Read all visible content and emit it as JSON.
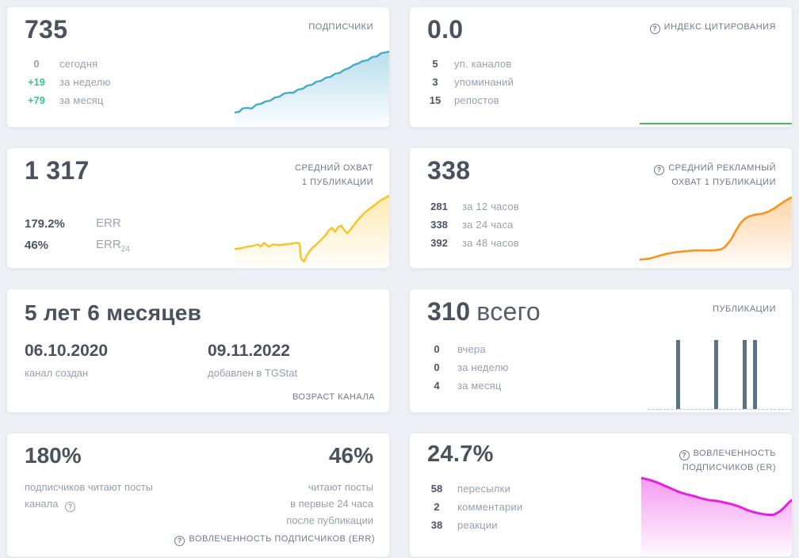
{
  "icons": {
    "help_glyph": "?"
  },
  "colors": {
    "page_bg": "#eef0f5",
    "card_bg": "#ffffff",
    "big_number": "#49525e",
    "header_label": "#6b7a8f",
    "stat_label": "#96a0af",
    "positive_green": "#3fc28c",
    "subscribers_line": "#45a9cd",
    "citation_line": "#3fbf55",
    "reach_line": "#f7c325",
    "ad_reach_line": "#f8941e",
    "publications_bar": "#5b7189",
    "er_line": "#e91fe0"
  },
  "cards": {
    "subscribers": {
      "value": "735",
      "title": "ПОДПИСЧИКИ",
      "stats": [
        {
          "value": "0",
          "label": "сегодня"
        },
        {
          "value": "+19",
          "label": "за неделю"
        },
        {
          "value": "+79",
          "label": "за месяц"
        }
      ],
      "chart": {
        "type": "area",
        "color": "#45a9cd",
        "fill_opacity": 0.38,
        "stroke_width": 2.4,
        "points": [
          [
            0,
            82
          ],
          [
            3,
            81
          ],
          [
            5,
            77
          ],
          [
            8,
            76
          ],
          [
            11,
            77
          ],
          [
            14,
            72
          ],
          [
            17,
            71
          ],
          [
            20,
            68
          ],
          [
            23,
            67
          ],
          [
            26,
            63
          ],
          [
            29,
            62
          ],
          [
            32,
            58
          ],
          [
            35,
            57
          ],
          [
            38,
            57
          ],
          [
            41,
            53
          ],
          [
            44,
            52
          ],
          [
            47,
            48
          ],
          [
            50,
            47
          ],
          [
            53,
            43
          ],
          [
            56,
            42
          ],
          [
            59,
            38
          ],
          [
            62,
            37
          ],
          [
            65,
            33
          ],
          [
            68,
            32
          ],
          [
            71,
            28
          ],
          [
            74,
            26
          ],
          [
            77,
            22
          ],
          [
            80,
            20
          ],
          [
            83,
            17
          ],
          [
            86,
            16
          ],
          [
            89,
            12
          ],
          [
            92,
            11
          ],
          [
            95,
            7
          ],
          [
            98,
            6
          ],
          [
            100,
            5
          ]
        ]
      }
    },
    "citation_index": {
      "value": "0.0",
      "title": "ИНДЕКС ЦИТИРОВАНИЯ",
      "stats": [
        {
          "value": "5",
          "label": "уп. каналов"
        },
        {
          "value": "3",
          "label": "упоминаний"
        },
        {
          "value": "15",
          "label": "репостов"
        }
      ],
      "chart": {
        "type": "flat-line",
        "color": "#3fbf55"
      }
    },
    "avg_post_reach": {
      "value": "1 317",
      "title_line1": "СРЕДНИЙ ОХВАТ",
      "title_line2": "1 ПУБЛИКАЦИИ",
      "stats": [
        {
          "value": "179.2%",
          "label": "ERR",
          "sub": ""
        },
        {
          "value": "46%",
          "label": "ERR",
          "sub": "24"
        }
      ],
      "chart": {
        "type": "area",
        "color": "#f7c325",
        "fill_opacity": 0.35,
        "stroke_width": 2.4,
        "points": [
          [
            0,
            76
          ],
          [
            4,
            75
          ],
          [
            8,
            73
          ],
          [
            12,
            72
          ],
          [
            15,
            70
          ],
          [
            17,
            73
          ],
          [
            19,
            68
          ],
          [
            22,
            73
          ],
          [
            25,
            70
          ],
          [
            29,
            71
          ],
          [
            33,
            70
          ],
          [
            37,
            69
          ],
          [
            40,
            68
          ],
          [
            42,
            69
          ],
          [
            43,
            88
          ],
          [
            45,
            92
          ],
          [
            47,
            83
          ],
          [
            50,
            75
          ],
          [
            53,
            70
          ],
          [
            56,
            64
          ],
          [
            59,
            58
          ],
          [
            61,
            52
          ],
          [
            63,
            49
          ],
          [
            65,
            54
          ],
          [
            67,
            48
          ],
          [
            69,
            46
          ],
          [
            71,
            52
          ],
          [
            73,
            56
          ],
          [
            75,
            51
          ],
          [
            78,
            43
          ],
          [
            81,
            36
          ],
          [
            84,
            30
          ],
          [
            87,
            25
          ],
          [
            90,
            21
          ],
          [
            93,
            16
          ],
          [
            96,
            12
          ],
          [
            100,
            8
          ]
        ]
      }
    },
    "avg_ad_reach": {
      "value": "338",
      "title_line1": "СРЕДНИЙ РЕКЛАМНЫЙ",
      "title_line2": "ОХВАТ 1 ПУБЛИКАЦИИ",
      "stats": [
        {
          "value": "281",
          "label": "за 12 часов"
        },
        {
          "value": "338",
          "label": "за 24 часа"
        },
        {
          "value": "392",
          "label": "за 48 часов"
        }
      ],
      "chart": {
        "type": "area",
        "color": "#f8941e",
        "fill_opacity": 0.4,
        "stroke_width": 2.6,
        "points": [
          [
            0,
            90
          ],
          [
            6,
            89
          ],
          [
            12,
            86
          ],
          [
            18,
            83
          ],
          [
            24,
            81
          ],
          [
            30,
            80
          ],
          [
            36,
            79
          ],
          [
            42,
            79
          ],
          [
            48,
            79
          ],
          [
            53,
            78
          ],
          [
            56,
            75
          ],
          [
            60,
            66
          ],
          [
            63,
            56
          ],
          [
            66,
            47
          ],
          [
            69,
            41
          ],
          [
            72,
            38
          ],
          [
            76,
            36
          ],
          [
            80,
            35
          ],
          [
            84,
            33
          ],
          [
            88,
            29
          ],
          [
            92,
            24
          ],
          [
            96,
            19
          ],
          [
            100,
            15
          ]
        ]
      }
    },
    "channel_age": {
      "value": "5 лет 6 месяцев",
      "created_date": "06.10.2020",
      "created_label": "канал создан",
      "added_date": "09.11.2022",
      "added_label": "добавлен в TGStat",
      "title": "ВОЗРАСТ КАНАЛА"
    },
    "publications": {
      "value": "310",
      "suffix": "всего",
      "title": "ПУБЛИКАЦИИ",
      "stats": [
        {
          "value": "0",
          "label": "вчера"
        },
        {
          "value": "0",
          "label": "за неделю"
        },
        {
          "value": "4",
          "label": "за месяц"
        }
      ],
      "chart": {
        "type": "bars",
        "color": "#5b7189",
        "baseline_color": "#b8c1ce",
        "bars": [
          {
            "x": 19.8,
            "h": 100
          },
          {
            "x": 46.2,
            "h": 100
          },
          {
            "x": 65.9,
            "h": 100
          },
          {
            "x": 73.1,
            "h": 100
          }
        ]
      }
    },
    "err_engagement": {
      "left_value": "180%",
      "left_label": "подписчиков читают посты канала",
      "right_value": "46%",
      "right_label_line1": "читают посты",
      "right_label_line2": "в первые 24 часа",
      "right_label_line3": "после публикации",
      "title": "ВОВЛЕЧЕННОСТЬ ПОДПИСЧИКОВ (ERR)"
    },
    "er_engagement": {
      "value": "24.7%",
      "title_line1": "ВОВЛЕЧЕННОСТЬ",
      "title_line2": "ПОДПИСЧИКОВ (ER)",
      "stats": [
        {
          "value": "58",
          "label": "пересылки"
        },
        {
          "value": "2",
          "label": "комментарии"
        },
        {
          "value": "38",
          "label": "реакции"
        }
      ],
      "chart": {
        "type": "area",
        "color": "#e91fe0",
        "fill_opacity": 0.45,
        "stroke_width": 3,
        "points": [
          [
            0,
            4
          ],
          [
            5,
            6
          ],
          [
            10,
            9
          ],
          [
            15,
            13
          ],
          [
            20,
            17
          ],
          [
            25,
            21
          ],
          [
            30,
            24
          ],
          [
            35,
            26
          ],
          [
            40,
            29
          ],
          [
            45,
            31
          ],
          [
            50,
            32
          ],
          [
            55,
            34
          ],
          [
            60,
            36
          ],
          [
            65,
            39
          ],
          [
            70,
            43
          ],
          [
            75,
            46
          ],
          [
            80,
            48
          ],
          [
            84,
            49
          ],
          [
            88,
            49
          ],
          [
            92,
            45
          ],
          [
            95,
            40
          ],
          [
            98,
            34
          ],
          [
            100,
            31
          ]
        ]
      }
    }
  }
}
